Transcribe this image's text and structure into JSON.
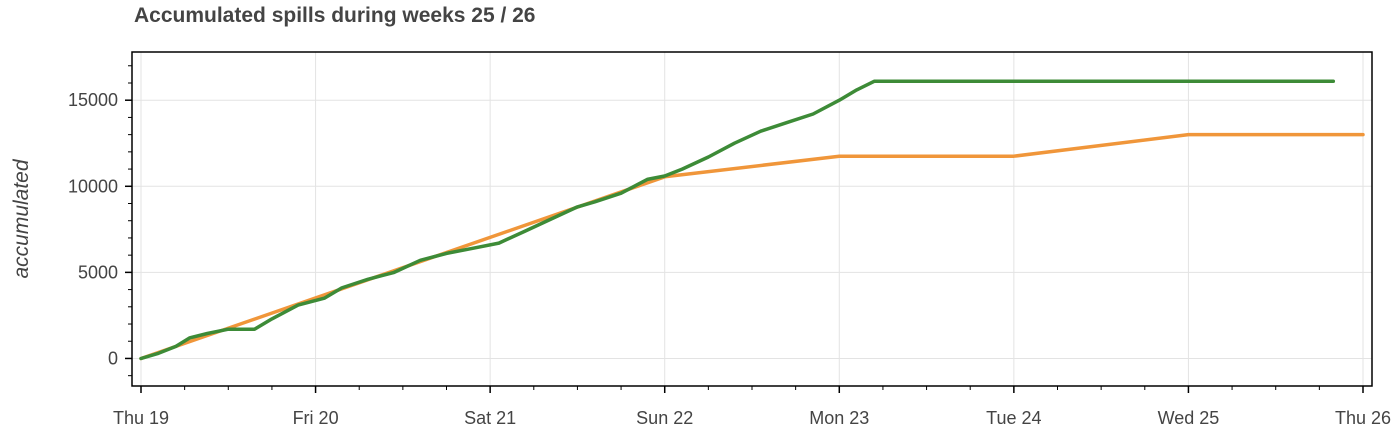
{
  "chart_data": {
    "type": "line",
    "title": "Accumulated spills during weeks 25 / 26",
    "xlabel": "",
    "ylabel": "accumulated",
    "x_axis": {
      "ticks": [
        "Thu 19",
        "Fri 20",
        "Sat 21",
        "Sun 22",
        "Mon 23",
        "Tue 24",
        "Wed 25",
        "Thu 26"
      ],
      "range_days": [
        0,
        7
      ]
    },
    "y_axis": {
      "ticks": [
        0,
        5000,
        10000,
        15000
      ],
      "tick_labels": [
        "0",
        "5000",
        "10000",
        "15000"
      ],
      "ylim": [
        -1600,
        17800
      ]
    },
    "grid": true,
    "series": [
      {
        "color": "#f0963a",
        "points": [
          [
            0,
            0
          ],
          [
            3,
            10550
          ],
          [
            4,
            11750
          ],
          [
            5,
            11750
          ],
          [
            6,
            13000
          ],
          [
            7,
            13000
          ]
        ]
      },
      {
        "color": "#3d8b37",
        "points": [
          [
            0,
            0
          ],
          [
            0.1,
            300
          ],
          [
            0.2,
            700
          ],
          [
            0.28,
            1200
          ],
          [
            0.38,
            1450
          ],
          [
            0.5,
            1700
          ],
          [
            0.65,
            1700
          ],
          [
            0.75,
            2300
          ],
          [
            0.9,
            3100
          ],
          [
            1.05,
            3500
          ],
          [
            1.15,
            4100
          ],
          [
            1.3,
            4600
          ],
          [
            1.45,
            5000
          ],
          [
            1.6,
            5700
          ],
          [
            1.75,
            6100
          ],
          [
            1.9,
            6400
          ],
          [
            2.05,
            6700
          ],
          [
            2.2,
            7400
          ],
          [
            2.35,
            8100
          ],
          [
            2.5,
            8800
          ],
          [
            2.6,
            9100
          ],
          [
            2.75,
            9600
          ],
          [
            2.9,
            10400
          ],
          [
            3.0,
            10600
          ],
          [
            3.1,
            11000
          ],
          [
            3.25,
            11700
          ],
          [
            3.4,
            12500
          ],
          [
            3.55,
            13200
          ],
          [
            3.7,
            13700
          ],
          [
            3.85,
            14200
          ],
          [
            4.0,
            15000
          ],
          [
            4.1,
            15600
          ],
          [
            4.2,
            16100
          ],
          [
            4.5,
            16100
          ],
          [
            5.0,
            16100
          ],
          [
            6.0,
            16100
          ],
          [
            6.83,
            16100
          ]
        ]
      }
    ]
  }
}
